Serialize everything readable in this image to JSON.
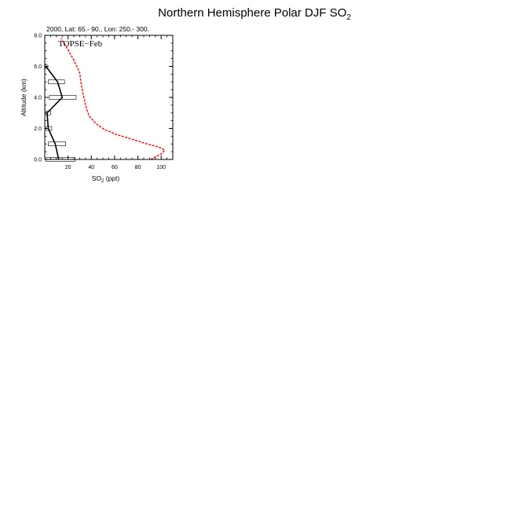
{
  "figure": {
    "title_main": "Northern Hemisphere Polar DJF SO",
    "title_sub": "2"
  },
  "chart_data": {
    "type": "line",
    "subtitle": "2000, Lat: 65.- 90., Lon: 250.- 300.",
    "annotation": "TOPSE−Feb",
    "xlabel_main": "SO",
    "xlabel_sub": "2",
    "xlabel_unit": " (ppt)",
    "ylabel": "Altitude (km)",
    "xlim": [
      0,
      110
    ],
    "ylim": [
      0,
      8
    ],
    "xticks": [
      20,
      40,
      60,
      80,
      100
    ],
    "yticks": [
      0.0,
      2.0,
      4.0,
      6.0,
      8.0
    ],
    "ytick_labels": [
      "0.0",
      "2.0",
      "4.0",
      "6.0",
      "8.0"
    ],
    "series": [
      {
        "style": "solid",
        "color": "#000000",
        "points": [
          [
            12,
            0
          ],
          [
            9,
            1
          ],
          [
            3,
            2
          ],
          [
            2,
            3
          ],
          [
            15,
            4
          ],
          [
            11,
            5
          ],
          [
            1,
            6
          ]
        ]
      },
      {
        "style": "dashed",
        "color": "#ff0000",
        "points": [
          [
            91,
            0
          ],
          [
            96,
            0.2
          ],
          [
            101,
            0.4
          ],
          [
            103,
            0.6
          ],
          [
            98,
            0.8
          ],
          [
            88,
            1.0
          ],
          [
            75,
            1.3
          ],
          [
            62,
            1.6
          ],
          [
            52,
            1.9
          ],
          [
            44,
            2.3
          ],
          [
            38,
            2.8
          ],
          [
            35,
            3.5
          ],
          [
            33,
            4.2
          ],
          [
            31,
            5.0
          ],
          [
            30,
            5.6
          ],
          [
            25,
            6.4
          ],
          [
            19,
            7.2
          ],
          [
            14,
            7.8
          ]
        ]
      }
    ],
    "boxes": [
      {
        "x_min": 1,
        "x_max": 26,
        "y": 0
      },
      {
        "x_min": 3,
        "x_max": 18,
        "y": 1
      },
      {
        "x_min": 1,
        "x_max": 6,
        "y": 2
      },
      {
        "x_min": 1,
        "x_max": 5,
        "y": 3
      },
      {
        "x_min": 4,
        "x_max": 27,
        "y": 4
      },
      {
        "x_min": 3,
        "x_max": 17,
        "y": 5
      },
      {
        "x_min": 0.5,
        "x_max": 2,
        "y": 6
      }
    ]
  }
}
